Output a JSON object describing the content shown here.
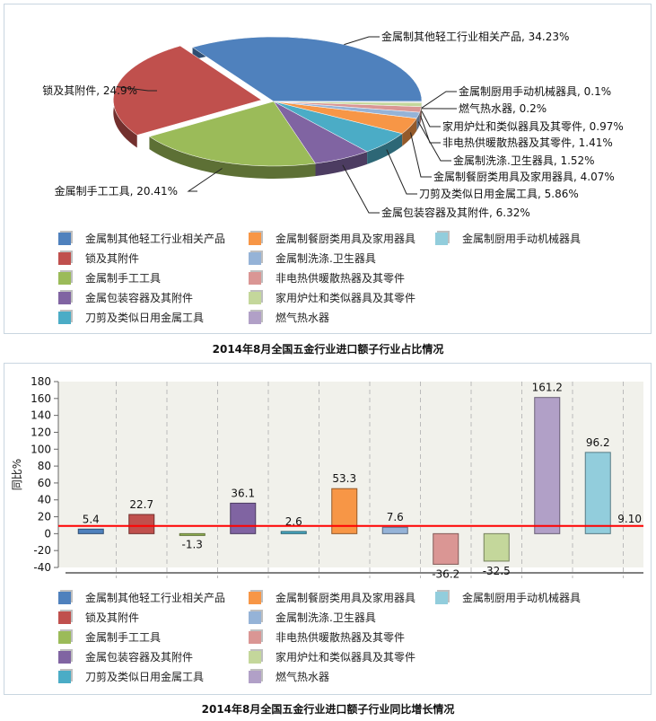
{
  "chart_data": [
    {
      "type": "pie",
      "title": "2014年8月全国五金行业进口额子行业占比情况",
      "slices": [
        {
          "label": "金属制其他轻工行业相关产品",
          "value": 34.23,
          "text": "金属制其他轻工行业相关产品, 34.23%",
          "color": "#4f81bd"
        },
        {
          "label": "锁及其附件",
          "value": 24.9,
          "text": "锁及其附件, 24.9%",
          "color": "#c0504d"
        },
        {
          "label": "金属制手工工具",
          "value": 20.41,
          "text": "金属制手工工具, 20.41%",
          "color": "#9bbb59"
        },
        {
          "label": "金属包装容器及其附件",
          "value": 6.32,
          "text": "金属包装容器及其附件, 6.32%",
          "color": "#8064a2"
        },
        {
          "label": "刀剪及类似日用金属工具",
          "value": 5.86,
          "text": "刀剪及类似日用金属工具, 5.86%",
          "color": "#4bacc6"
        },
        {
          "label": "金属制餐厨类用具及家用器具",
          "value": 4.07,
          "text": "金属制餐厨类用具及家用器具, 4.07%",
          "color": "#f79646"
        },
        {
          "label": "金属制洗涤.卫生器具",
          "value": 1.52,
          "text": "金属制洗涤.卫生器具, 1.52%",
          "color": "#95b3d7"
        },
        {
          "label": "非电热供暖散热器及其零件",
          "value": 1.41,
          "text": "非电热供暖散热器及其零件, 1.41%",
          "color": "#da9694"
        },
        {
          "label": "家用炉灶和类似器具及其零件",
          "value": 0.97,
          "text": "家用炉灶和类似器具及其零件, 0.97%",
          "color": "#c4d79b"
        },
        {
          "label": "燃气热水器",
          "value": 0.2,
          "text": "燃气热水器, 0.2%",
          "color": "#b1a0c7"
        },
        {
          "label": "金属制厨用手动机械器具",
          "value": 0.1,
          "text": "金属制厨用手动机械器具, 0.1%",
          "color": "#92cddc"
        }
      ],
      "legend_order": [
        0,
        5,
        10,
        1,
        6,
        2,
        7,
        3,
        8,
        4,
        9
      ]
    },
    {
      "type": "bar",
      "title": "2014年8月全国五金行业进口额子行业同比增长情况",
      "ylabel": "同比%",
      "ylim": [
        -40,
        180
      ],
      "yticks": [
        -40,
        -20,
        0,
        20,
        40,
        60,
        80,
        100,
        120,
        140,
        160,
        180
      ],
      "bars": [
        {
          "label": "金属制其他轻工行业相关产品",
          "value": 5.4,
          "text": "5.4",
          "color": "#4f81bd"
        },
        {
          "label": "锁及其附件",
          "value": 22.7,
          "text": "22.7",
          "color": "#c0504d"
        },
        {
          "label": "金属制手工工具",
          "value": -1.3,
          "text": "-1.3",
          "color": "#9bbb59"
        },
        {
          "label": "金属包装容器及其附件",
          "value": 36.1,
          "text": "36.1",
          "color": "#8064a2"
        },
        {
          "label": "刀剪及类似日用金属工具",
          "value": 2.6,
          "text": "2.6",
          "color": "#4bacc6"
        },
        {
          "label": "金属制餐厨类用具及家用器具",
          "value": 53.3,
          "text": "53.3",
          "color": "#f79646"
        },
        {
          "label": "金属制洗涤.卫生器具",
          "value": 7.6,
          "text": "7.6",
          "color": "#95b3d7"
        },
        {
          "label": "非电热供暖散热器及其零件",
          "value": -36.2,
          "text": "-36.2",
          "color": "#da9694"
        },
        {
          "label": "家用炉灶和类似器具及其零件",
          "value": -32.5,
          "text": "-32.5",
          "color": "#c4d79b"
        },
        {
          "label": "燃气热水器",
          "value": 161.2,
          "text": "161.2",
          "color": "#b1a0c7"
        },
        {
          "label": "金属制厨用手动机械器具",
          "value": 96.2,
          "text": "96.2",
          "color": "#92cddc"
        }
      ],
      "reference_line": {
        "value": 9.1,
        "text": "9.10",
        "color": "#ff0000"
      },
      "legend_order": [
        0,
        5,
        10,
        1,
        6,
        2,
        7,
        3,
        8,
        4,
        9
      ]
    }
  ]
}
